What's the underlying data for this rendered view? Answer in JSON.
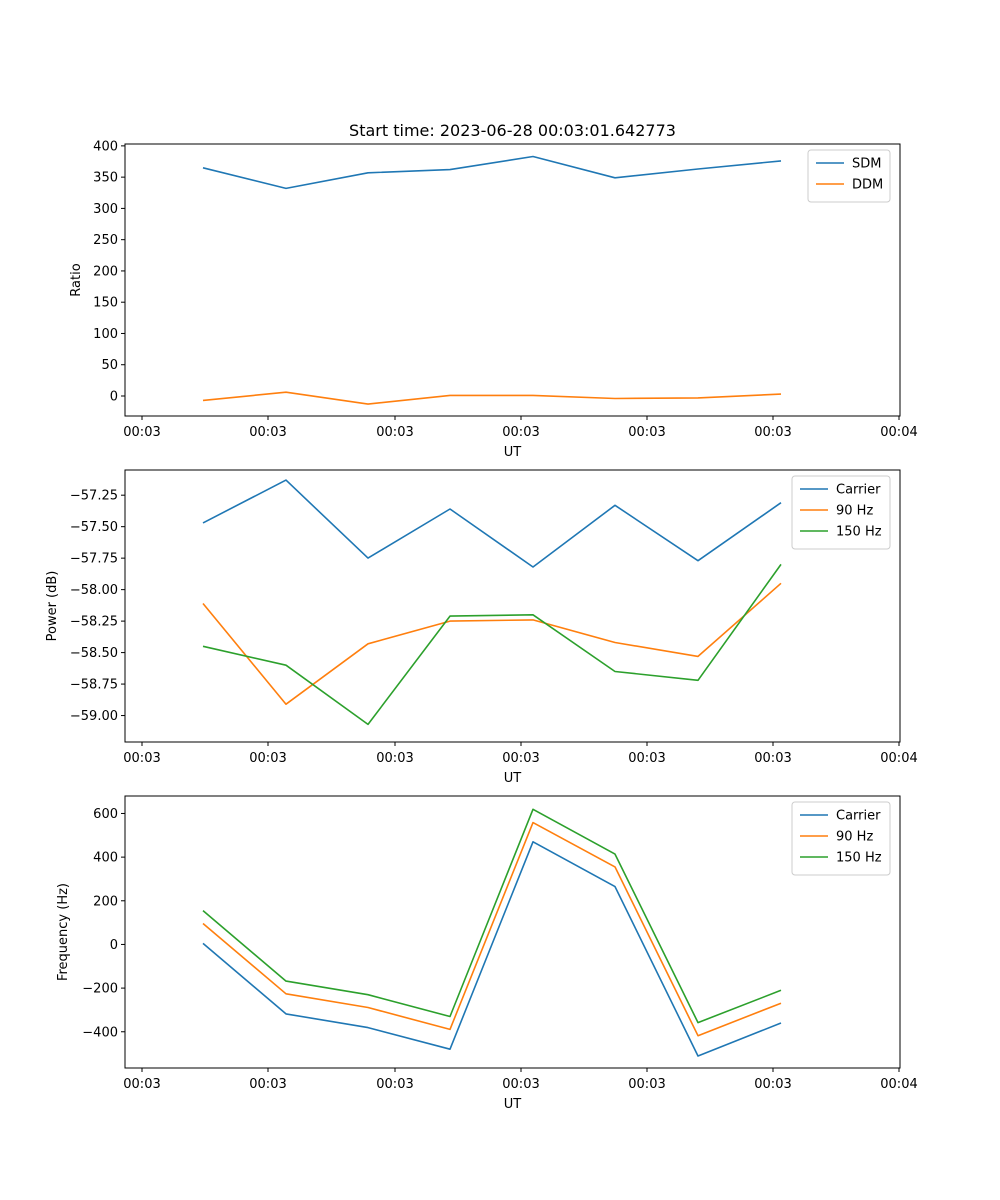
{
  "chart_data": [
    {
      "type": "line",
      "title": "Start time: 2023-06-28 00:03:01.642773",
      "xlabel": "UT",
      "ylabel": "Ratio",
      "ylim": [
        -32,
        403
      ],
      "y_ticks": [
        0,
        50,
        100,
        150,
        200,
        250,
        300,
        350,
        400
      ],
      "y_tick_labels": [
        "0",
        "50",
        "100",
        "150",
        "200",
        "250",
        "300",
        "350",
        "400"
      ],
      "x_tick_labels": [
        "00:03",
        "00:03",
        "00:03",
        "00:03",
        "00:03",
        "00:03",
        "00:03",
        "00:04"
      ],
      "legend": "top-right",
      "series": [
        {
          "name": "SDM",
          "color": "#1f77b4",
          "values": [
            365,
            332,
            357,
            362,
            383,
            349,
            363,
            376
          ]
        },
        {
          "name": "DDM",
          "color": "#ff7f0e",
          "values": [
            -7,
            6,
            -13,
            1,
            1,
            -4,
            -3,
            3
          ]
        }
      ]
    },
    {
      "type": "line",
      "title": "",
      "xlabel": "UT",
      "ylabel": "Power (dB)",
      "ylim": [
        -59.21,
        -57.05
      ],
      "y_ticks": [
        -59.0,
        -58.75,
        -58.5,
        -58.25,
        -58.0,
        -57.75,
        -57.5,
        -57.25
      ],
      "y_tick_labels": [
        "−59.00",
        "−58.75",
        "−58.50",
        "−58.25",
        "−58.00",
        "−57.75",
        "−57.50",
        "−57.25"
      ],
      "x_tick_labels": [
        "00:03",
        "00:03",
        "00:03",
        "00:03",
        "00:03",
        "00:03",
        "00:03",
        "00:04"
      ],
      "legend": "top-right",
      "series": [
        {
          "name": "Carrier",
          "color": "#1f77b4",
          "values": [
            -57.47,
            -57.13,
            -57.75,
            -57.36,
            -57.82,
            -57.33,
            -57.77,
            -57.31
          ]
        },
        {
          "name": "90 Hz",
          "color": "#ff7f0e",
          "values": [
            -58.11,
            -58.91,
            -58.43,
            -58.25,
            -58.24,
            -58.42,
            -58.53,
            -57.95
          ]
        },
        {
          "name": "150 Hz",
          "color": "#2ca02c",
          "values": [
            -58.45,
            -58.6,
            -59.07,
            -58.21,
            -58.2,
            -58.65,
            -58.72,
            -57.8
          ]
        }
      ]
    },
    {
      "type": "line",
      "title": "",
      "xlabel": "UT",
      "ylabel": "Frequency (Hz)",
      "ylim": [
        -566,
        680
      ],
      "y_ticks": [
        -400,
        -200,
        0,
        200,
        400,
        600
      ],
      "y_tick_labels": [
        "−400",
        "−200",
        "0",
        "200",
        "400",
        "600"
      ],
      "x_tick_labels": [
        "00:03",
        "00:03",
        "00:03",
        "00:03",
        "00:03",
        "00:03",
        "00:03",
        "00:04"
      ],
      "legend": "top-right",
      "series": [
        {
          "name": "Carrier",
          "color": "#1f77b4",
          "values": [
            5,
            -318,
            -381,
            -480,
            470,
            265,
            -511,
            -360
          ]
        },
        {
          "name": "90 Hz",
          "color": "#ff7f0e",
          "values": [
            96,
            -226,
            -289,
            -389,
            558,
            355,
            -418,
            -269
          ]
        },
        {
          "name": "150 Hz",
          "color": "#2ca02c",
          "values": [
            155,
            -168,
            -230,
            -330,
            619,
            414,
            -358,
            -210
          ]
        }
      ]
    }
  ]
}
